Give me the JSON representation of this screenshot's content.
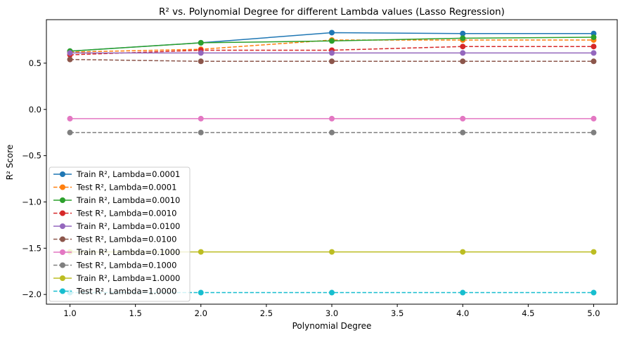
{
  "chart_data": {
    "type": "line",
    "title": "R² vs. Polynomial Degree for different Lambda values (Lasso Regression)",
    "xlabel": "Polynomial Degree",
    "ylabel": "R² Score",
    "x": [
      1,
      2,
      3,
      4,
      5
    ],
    "xlim": [
      0.82,
      5.18
    ],
    "ylim": [
      -2.105,
      0.97
    ],
    "xticks": [
      1.0,
      1.5,
      2.0,
      2.5,
      3.0,
      3.5,
      4.0,
      4.5,
      5.0
    ],
    "xtick_labels": [
      "1.0",
      "1.5",
      "2.0",
      "2.5",
      "3.0",
      "3.5",
      "4.0",
      "4.5",
      "5.0"
    ],
    "yticks": [
      -2.0,
      -1.5,
      -1.0,
      -0.5,
      0.0,
      0.5
    ],
    "ytick_labels": [
      "−2.0",
      "−1.5",
      "−1.0",
      "−0.5",
      "0.0",
      "0.5"
    ],
    "grid": false,
    "legend_position": "lower-left",
    "series": [
      {
        "name": "Train R², Lambda=0.0001",
        "color": "#1f77b4",
        "dash": "solid",
        "values": [
          0.63,
          0.72,
          0.83,
          0.82,
          0.82
        ]
      },
      {
        "name": "Test R², Lambda=0.0001",
        "color": "#ff7f0e",
        "dash": "dashed",
        "values": [
          0.62,
          0.65,
          0.75,
          0.75,
          0.75
        ]
      },
      {
        "name": "Train R², Lambda=0.0010",
        "color": "#2ca02c",
        "dash": "solid",
        "values": [
          0.63,
          0.72,
          0.74,
          0.77,
          0.78
        ]
      },
      {
        "name": "Test R², Lambda=0.0010",
        "color": "#d62728",
        "dash": "dashed",
        "values": [
          0.59,
          0.64,
          0.64,
          0.68,
          0.68
        ]
      },
      {
        "name": "Train R², Lambda=0.0100",
        "color": "#9467bd",
        "dash": "solid",
        "values": [
          0.61,
          0.61,
          0.61,
          0.61,
          0.61
        ]
      },
      {
        "name": "Test R², Lambda=0.0100",
        "color": "#8c564b",
        "dash": "dashed",
        "values": [
          0.54,
          0.52,
          0.52,
          0.52,
          0.52
        ]
      },
      {
        "name": "Train R², Lambda=0.1000",
        "color": "#e377c2",
        "dash": "solid",
        "values": [
          -0.1,
          -0.1,
          -0.1,
          -0.1,
          -0.1
        ]
      },
      {
        "name": "Test R², Lambda=0.1000",
        "color": "#7f7f7f",
        "dash": "dashed",
        "values": [
          -0.25,
          -0.25,
          -0.25,
          -0.25,
          -0.25
        ]
      },
      {
        "name": "Train R², Lambda=1.0000",
        "color": "#bcbd22",
        "dash": "solid",
        "values": [
          -1.54,
          -1.54,
          -1.54,
          -1.54,
          -1.54
        ]
      },
      {
        "name": "Test R², Lambda=1.0000",
        "color": "#17becf",
        "dash": "dashed",
        "values": [
          -1.98,
          -1.98,
          -1.98,
          -1.98,
          -1.98
        ]
      }
    ]
  }
}
